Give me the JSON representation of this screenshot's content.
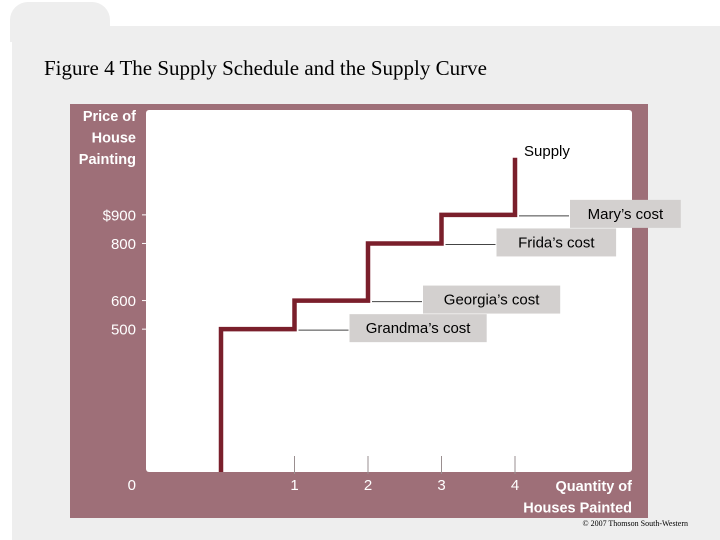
{
  "slide": {
    "title": "Figure 4 The Supply Schedule and the Supply Curve",
    "copyright": "© 2007 Thomson South-Western"
  },
  "colors": {
    "panel": "#9e6f78",
    "plot": "#ffffff",
    "curve": "#7a1f2b",
    "label_box": "#d3d0cf",
    "text": "#ffffff",
    "label_text": "#000000"
  },
  "chart_data": {
    "type": "line",
    "title": "",
    "ylabel": "Price of House Painting",
    "xlabel": "Quantity of Houses Painted",
    "xlim": [
      0,
      4.6
    ],
    "ylim": [
      0,
      1100
    ],
    "grid": false,
    "x_ticks": [
      0,
      1,
      2,
      3,
      4
    ],
    "y_ticks": [
      {
        "value": 0,
        "label": "0"
      },
      {
        "value": 500,
        "label": "500"
      },
      {
        "value": 600,
        "label": "600"
      },
      {
        "value": 800,
        "label": "800"
      },
      {
        "value": 900,
        "label": "$900"
      }
    ],
    "series": [
      {
        "name": "Supply",
        "step_points": [
          [
            0,
            0
          ],
          [
            0,
            500
          ],
          [
            1,
            500
          ],
          [
            1,
            600
          ],
          [
            2,
            600
          ],
          [
            2,
            800
          ],
          [
            3,
            800
          ],
          [
            3,
            900
          ],
          [
            4,
            900
          ],
          [
            4,
            1100
          ]
        ]
      }
    ],
    "annotations": [
      {
        "text": "Grandma’s cost",
        "price": 500,
        "qty": 0.5
      },
      {
        "text": "Georgia’s cost",
        "price": 600,
        "qty": 1.5
      },
      {
        "text": "Frida’s cost",
        "price": 800,
        "qty": 2.5
      },
      {
        "text": "Mary’s cost",
        "price": 900,
        "qty": 3.5
      }
    ]
  }
}
